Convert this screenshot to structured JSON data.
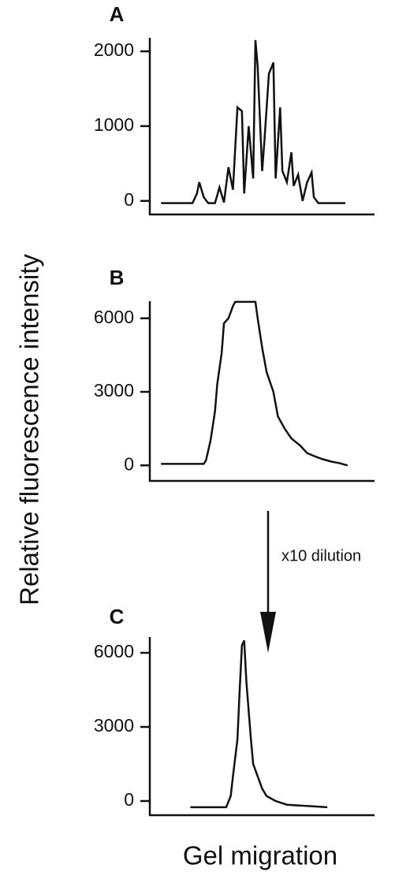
{
  "ylabel": "Relative fluorescence intensity",
  "xlabel": "Gel migration",
  "annotation": "x10 dilution",
  "chart_data": [
    {
      "type": "line",
      "title": "A",
      "x": [
        5,
        19,
        21,
        22,
        24,
        26,
        29,
        31,
        33,
        35,
        37,
        39,
        41,
        42,
        44,
        46,
        47,
        48,
        50,
        51,
        53,
        55,
        56,
        58,
        59,
        61,
        63,
        64,
        66,
        68,
        70,
        72,
        73,
        75,
        87
      ],
      "values": [
        -30,
        -30,
        100,
        250,
        50,
        -30,
        -30,
        180,
        -20,
        450,
        150,
        1250,
        1200,
        100,
        1000,
        300,
        2150,
        1800,
        400,
        800,
        1700,
        1850,
        300,
        1250,
        400,
        250,
        650,
        200,
        350,
        0,
        250,
        380,
        50,
        -30,
        -30
      ],
      "xlim": [
        0,
        100
      ],
      "ylim": [
        -160,
        2180
      ],
      "yticks": [
        0,
        1000,
        2000
      ]
    },
    {
      "type": "line",
      "title": "B",
      "x": [
        5,
        24,
        25,
        27,
        29,
        30,
        32,
        33,
        35,
        37,
        38,
        40,
        47,
        48,
        50,
        52,
        55,
        57,
        60,
        63,
        67,
        70,
        74,
        77,
        81,
        84,
        88
      ],
      "values": [
        60,
        60,
        200,
        1000,
        2200,
        3300,
        4600,
        5800,
        6000,
        6500,
        6670,
        6670,
        6670,
        6000,
        4800,
        3800,
        3000,
        2000,
        1500,
        1100,
        800,
        500,
        350,
        250,
        150,
        100,
        0
      ],
      "xlim": [
        0,
        100
      ],
      "ylim": [
        -570,
        6700
      ],
      "yticks": [
        0,
        3000,
        6000
      ]
    },
    {
      "type": "line",
      "title": "C",
      "x": [
        18,
        34,
        36,
        37,
        39,
        40,
        41,
        42,
        43,
        45,
        46,
        48,
        50,
        52,
        56,
        61,
        79
      ],
      "values": [
        -250,
        -250,
        200,
        1000,
        2500,
        4500,
        6300,
        6500,
        4800,
        2500,
        1500,
        1000,
        500,
        200,
        0,
        -150,
        -250
      ],
      "xlim": [
        0,
        100
      ],
      "ylim": [
        -510,
        6640
      ],
      "yticks": [
        0,
        3000,
        6000
      ]
    }
  ]
}
